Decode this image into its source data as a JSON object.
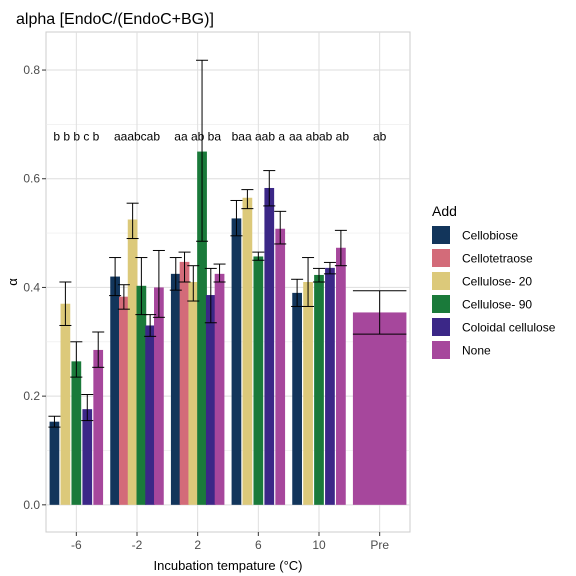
{
  "chart_data": {
    "type": "bar",
    "title": "alpha [EndoC/(EndoC+BG)]",
    "xlabel": "Incubation tempature (°C)",
    "ylabel": "α",
    "ylim": [
      -0.05,
      0.87
    ],
    "yticks": [
      0.0,
      0.2,
      0.4,
      0.6,
      0.8
    ],
    "ytick_labels": [
      "0.0",
      "0.2",
      "0.4",
      "0.6",
      "0.8"
    ],
    "categories": [
      "-6",
      "-2",
      "2",
      "6",
      "10",
      "Pre"
    ],
    "grid": true,
    "legend_position": "right",
    "legend_title": "Add",
    "series": [
      {
        "name": "Cellobiose",
        "color": "#12355b",
        "values": [
          0.153,
          0.42,
          0.425,
          0.527,
          0.39,
          null
        ],
        "err_low": [
          0.143,
          0.385,
          0.395,
          0.495,
          0.365,
          null
        ],
        "err_high": [
          0.163,
          0.455,
          0.455,
          0.56,
          0.415,
          null
        ]
      },
      {
        "name": "Cellotetraose",
        "color": "#d36b79",
        "values": [
          null,
          0.383,
          0.447,
          null,
          null,
          null
        ],
        "err_low": [
          null,
          0.36,
          0.41,
          null,
          null,
          null
        ],
        "err_high": [
          null,
          0.405,
          0.465,
          null,
          null,
          null
        ]
      },
      {
        "name": "Cellulose- 20",
        "color": "#dcc97a",
        "values": [
          0.37,
          0.525,
          0.41,
          0.565,
          0.41,
          null
        ],
        "err_low": [
          0.33,
          0.49,
          0.375,
          0.545,
          0.365,
          null
        ],
        "err_high": [
          0.41,
          0.555,
          0.44,
          0.58,
          0.455,
          null
        ]
      },
      {
        "name": "Cellulose- 90",
        "color": "#1a7a3a",
        "values": [
          0.264,
          0.403,
          0.65,
          0.457,
          0.423,
          null
        ],
        "err_low": [
          0.235,
          0.35,
          0.485,
          0.45,
          0.41,
          null
        ],
        "err_high": [
          0.3,
          0.455,
          0.818,
          0.465,
          0.435,
          null
        ]
      },
      {
        "name": "Coloidal cellulose",
        "color": "#3b2787",
        "values": [
          0.176,
          0.33,
          0.386,
          0.583,
          0.436,
          null
        ],
        "err_low": [
          0.155,
          0.31,
          0.335,
          0.55,
          0.425,
          null
        ],
        "err_high": [
          0.203,
          0.35,
          0.435,
          0.615,
          0.446,
          null
        ]
      },
      {
        "name": "None",
        "color": "#a6479c",
        "values": [
          0.285,
          0.4,
          0.425,
          0.508,
          0.473,
          0.354
        ],
        "err_low": [
          0.253,
          0.345,
          0.41,
          0.48,
          0.44,
          0.314
        ],
        "err_high": [
          0.318,
          0.468,
          0.443,
          0.54,
          0.505,
          0.394
        ]
      }
    ],
    "annotations": [
      {
        "category": "-6",
        "text": "b b b c b"
      },
      {
        "category": "-2",
        "text": "aaabcab"
      },
      {
        "category": "2",
        "text": "aa ab ba"
      },
      {
        "category": "6",
        "text": "baa aab a"
      },
      {
        "category": "10",
        "text": "aa abab ab"
      },
      {
        "category": "Pre",
        "text": "ab"
      }
    ],
    "annotation_y": 0.678
  }
}
